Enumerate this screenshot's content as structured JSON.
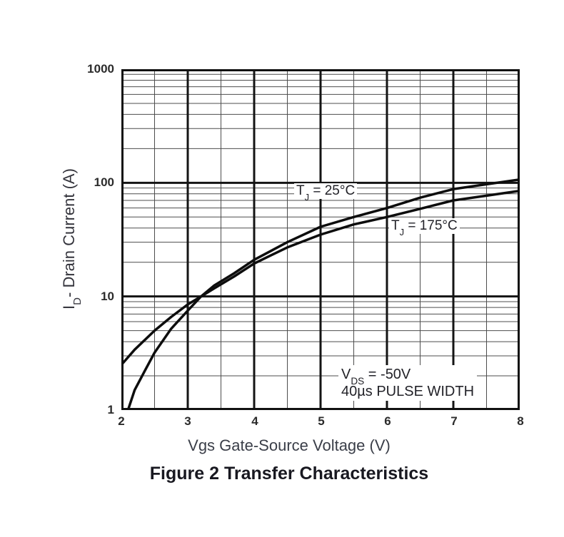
{
  "figure": {
    "caption": "Figure 2 Transfer Characteristics"
  },
  "x_axis": {
    "title": "Vgs Gate-Source Voltage (V)",
    "ticks": [
      "2",
      "3",
      "4",
      "5",
      "6",
      "7",
      "8"
    ]
  },
  "y_axis": {
    "title_prefix": "I",
    "title_sub": "D",
    "title_rest": "- Drain Current (A)",
    "ticks": [
      "1000",
      "100",
      "10",
      "1"
    ]
  },
  "curve_labels": {
    "t25": {
      "prefix": "T",
      "sub": "J",
      "rest": " = 25°C"
    },
    "t175": {
      "prefix": "T",
      "sub": "J",
      "rest": " = 175°C"
    }
  },
  "annotation": {
    "line1_prefix": "V",
    "line1_sub": "DS",
    "line1_rest": " = -50V",
    "line2": "40µs PULSE WIDTH"
  },
  "colors": {
    "curve": "#0d0d0d",
    "grid_major": "#141414",
    "grid_minor": "#4d4d4d",
    "border": "#111111"
  },
  "chart_data": {
    "type": "line",
    "title": "Figure 2 Transfer Characteristics",
    "xlabel": "Vgs Gate-Source Voltage (V)",
    "ylabel": "ID - Drain Current (A)",
    "x_range": [
      2,
      8
    ],
    "x_major_step": 1,
    "x_minor_step": 0.5,
    "y_range": [
      1,
      1000
    ],
    "y_scale": "log",
    "grid": true,
    "legend_position": "inline-labels",
    "conditions": [
      "VDS = -50V",
      "40µs PULSE WIDTH"
    ],
    "series": [
      {
        "name": "TJ = 25°C",
        "points": [
          [
            2.1,
            1
          ],
          [
            2.2,
            1.5
          ],
          [
            2.35,
            2.2
          ],
          [
            2.5,
            3.2
          ],
          [
            2.75,
            5.2
          ],
          [
            3,
            7.5
          ],
          [
            3.2,
            10
          ],
          [
            3.4,
            12.5
          ],
          [
            3.7,
            16
          ],
          [
            4,
            21
          ],
          [
            4.5,
            30
          ],
          [
            5,
            41
          ],
          [
            5.5,
            50
          ],
          [
            6,
            60
          ],
          [
            6.5,
            74
          ],
          [
            7,
            88
          ],
          [
            7.5,
            97
          ],
          [
            8,
            107
          ]
        ]
      },
      {
        "name": "TJ = 175°C",
        "points": [
          [
            2,
            2.5
          ],
          [
            2.2,
            3.4
          ],
          [
            2.5,
            5.0
          ],
          [
            2.75,
            6.6
          ],
          [
            3,
            8.5
          ],
          [
            3.2,
            10
          ],
          [
            3.4,
            11.8
          ],
          [
            3.7,
            15
          ],
          [
            4,
            19.5
          ],
          [
            4.5,
            27
          ],
          [
            5,
            35
          ],
          [
            5.5,
            43
          ],
          [
            6,
            50
          ],
          [
            6.5,
            59
          ],
          [
            7,
            70
          ],
          [
            7.5,
            77
          ],
          [
            8,
            85
          ]
        ]
      }
    ]
  }
}
